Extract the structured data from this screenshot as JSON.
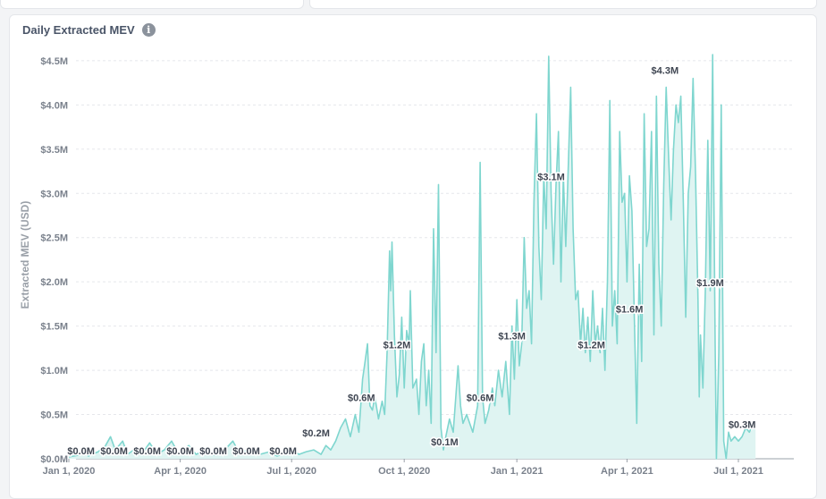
{
  "chart_data": {
    "type": "area",
    "title": "Daily Extracted MEV",
    "ylabel": "Extracted MEV (USD)",
    "xlabel": "",
    "ylim": [
      0,
      4.6
    ],
    "y_ticks": [
      {
        "value": 0.0,
        "label": "$0.0M"
      },
      {
        "value": 0.5,
        "label": "$0.5M"
      },
      {
        "value": 1.0,
        "label": "$1.0M"
      },
      {
        "value": 1.5,
        "label": "$1.5M"
      },
      {
        "value": 2.0,
        "label": "$2.0M"
      },
      {
        "value": 2.5,
        "label": "$2.5M"
      },
      {
        "value": 3.0,
        "label": "$3.0M"
      },
      {
        "value": 3.5,
        "label": "$3.5M"
      },
      {
        "value": 4.0,
        "label": "$4.0M"
      },
      {
        "value": 4.5,
        "label": "$4.5M"
      }
    ],
    "x_range_days": [
      0,
      561
    ],
    "x_ticks": [
      {
        "day": 0,
        "label": "Jan 1, 2020"
      },
      {
        "day": 91,
        "label": "Apr 1, 2020"
      },
      {
        "day": 182,
        "label": "Jul 1, 2020"
      },
      {
        "day": 274,
        "label": "Oct 1, 2020"
      },
      {
        "day": 366,
        "label": "Jan 1, 2021"
      },
      {
        "day": 456,
        "label": "Apr 1, 2021"
      },
      {
        "day": 547,
        "label": "Jul 1, 2021"
      }
    ],
    "series": [
      {
        "name": "Daily Extracted MEV",
        "color": "#7fd6cf",
        "fill": "#dff4f2",
        "points": [
          [
            0,
            0.02
          ],
          [
            8,
            0.04
          ],
          [
            12,
            0.1
          ],
          [
            16,
            0.03
          ],
          [
            24,
            0.08
          ],
          [
            30,
            0.15
          ],
          [
            34,
            0.25
          ],
          [
            38,
            0.1
          ],
          [
            44,
            0.2
          ],
          [
            48,
            0.05
          ],
          [
            55,
            0.12
          ],
          [
            60,
            0.06
          ],
          [
            66,
            0.18
          ],
          [
            72,
            0.05
          ],
          [
            78,
            0.1
          ],
          [
            84,
            0.2
          ],
          [
            90,
            0.05
          ],
          [
            98,
            0.15
          ],
          [
            104,
            0.05
          ],
          [
            112,
            0.1
          ],
          [
            118,
            0.04
          ],
          [
            126,
            0.08
          ],
          [
            134,
            0.2
          ],
          [
            140,
            0.05
          ],
          [
            148,
            0.12
          ],
          [
            156,
            0.05
          ],
          [
            164,
            0.08
          ],
          [
            170,
            0.03
          ],
          [
            176,
            0.06
          ],
          [
            182,
            0.1
          ],
          [
            188,
            0.05
          ],
          [
            194,
            0.08
          ],
          [
            200,
            0.1
          ],
          [
            206,
            0.05
          ],
          [
            210,
            0.15
          ],
          [
            214,
            0.1
          ],
          [
            218,
            0.2
          ],
          [
            222,
            0.35
          ],
          [
            226,
            0.45
          ],
          [
            230,
            0.25
          ],
          [
            234,
            0.5
          ],
          [
            237,
            0.3
          ],
          [
            240,
            0.9
          ],
          [
            242,
            1.1
          ],
          [
            244,
            1.3
          ],
          [
            246,
            0.6
          ],
          [
            248,
            0.55
          ],
          [
            250,
            0.7
          ],
          [
            253,
            0.45
          ],
          [
            256,
            0.65
          ],
          [
            258,
            0.5
          ],
          [
            260,
            1.2
          ],
          [
            262,
            2.35
          ],
          [
            263,
            1.9
          ],
          [
            264,
            2.45
          ],
          [
            266,
            1.4
          ],
          [
            268,
            0.7
          ],
          [
            270,
            0.95
          ],
          [
            272,
            1.6
          ],
          [
            274,
            0.8
          ],
          [
            276,
            1.45
          ],
          [
            278,
            1.3
          ],
          [
            279,
            1.9
          ],
          [
            281,
            0.8
          ],
          [
            284,
            0.9
          ],
          [
            286,
            0.5
          ],
          [
            288,
            1.1
          ],
          [
            290,
            1.3
          ],
          [
            292,
            0.6
          ],
          [
            294,
            1.0
          ],
          [
            296,
            0.4
          ],
          [
            298,
            2.6
          ],
          [
            300,
            1.2
          ],
          [
            302,
            3.1
          ],
          [
            304,
            0.35
          ],
          [
            306,
            0.1
          ],
          [
            308,
            0.25
          ],
          [
            311,
            0.45
          ],
          [
            314,
            0.3
          ],
          [
            318,
            1.05
          ],
          [
            320,
            0.6
          ],
          [
            322,
            0.4
          ],
          [
            325,
            0.5
          ],
          [
            330,
            0.3
          ],
          [
            334,
            0.6
          ],
          [
            336,
            3.35
          ],
          [
            338,
            0.7
          ],
          [
            340,
            0.4
          ],
          [
            343,
            0.55
          ],
          [
            346,
            0.8
          ],
          [
            348,
            0.6
          ],
          [
            351,
            1.0
          ],
          [
            354,
            0.7
          ],
          [
            357,
            1.1
          ],
          [
            360,
            0.5
          ],
          [
            362,
            1.5
          ],
          [
            364,
            0.9
          ],
          [
            366,
            1.8
          ],
          [
            368,
            1.05
          ],
          [
            370,
            1.3
          ],
          [
            372,
            2.5
          ],
          [
            374,
            1.7
          ],
          [
            376,
            1.9
          ],
          [
            378,
            1.3
          ],
          [
            380,
            2.9
          ],
          [
            382,
            3.9
          ],
          [
            384,
            2.4
          ],
          [
            386,
            1.8
          ],
          [
            388,
            3.2
          ],
          [
            390,
            2.6
          ],
          [
            392,
            4.55
          ],
          [
            394,
            3.0
          ],
          [
            396,
            2.2
          ],
          [
            398,
            3.1
          ],
          [
            400,
            3.7
          ],
          [
            402,
            2.0
          ],
          [
            404,
            3.2
          ],
          [
            406,
            2.4
          ],
          [
            408,
            3.3
          ],
          [
            410,
            4.2
          ],
          [
            412,
            2.6
          ],
          [
            414,
            1.8
          ],
          [
            416,
            1.9
          ],
          [
            418,
            1.3
          ],
          [
            420,
            1.7
          ],
          [
            422,
            1.2
          ],
          [
            424,
            1.6
          ],
          [
            426,
            1.1
          ],
          [
            428,
            1.9
          ],
          [
            430,
            1.3
          ],
          [
            432,
            1.5
          ],
          [
            434,
            1.2
          ],
          [
            436,
            1.7
          ],
          [
            438,
            1.0
          ],
          [
            440,
            2.0
          ],
          [
            442,
            4.05
          ],
          [
            444,
            1.5
          ],
          [
            446,
            1.9
          ],
          [
            448,
            1.3
          ],
          [
            450,
            3.7
          ],
          [
            452,
            2.9
          ],
          [
            454,
            3.0
          ],
          [
            456,
            2.0
          ],
          [
            458,
            3.2
          ],
          [
            460,
            2.8
          ],
          [
            462,
            1.6
          ],
          [
            464,
            0.4
          ],
          [
            466,
            2.2
          ],
          [
            468,
            1.1
          ],
          [
            470,
            3.9
          ],
          [
            472,
            2.4
          ],
          [
            474,
            2.6
          ],
          [
            476,
            3.7
          ],
          [
            478,
            1.4
          ],
          [
            480,
            4.1
          ],
          [
            482,
            2.2
          ],
          [
            484,
            1.5
          ],
          [
            486,
            3.1
          ],
          [
            488,
            4.2
          ],
          [
            490,
            3.4
          ],
          [
            492,
            2.7
          ],
          [
            494,
            3.5
          ],
          [
            496,
            4.0
          ],
          [
            498,
            3.8
          ],
          [
            500,
            4.1
          ],
          [
            502,
            2.9
          ],
          [
            504,
            1.6
          ],
          [
            506,
            3.0
          ],
          [
            508,
            3.3
          ],
          [
            510,
            4.3
          ],
          [
            512,
            3.2
          ],
          [
            514,
            1.8
          ],
          [
            515,
            0.7
          ],
          [
            516,
            1.4
          ],
          [
            518,
            0.8
          ],
          [
            520,
            1.9
          ],
          [
            522,
            3.6
          ],
          [
            524,
            1.9
          ],
          [
            526,
            4.57
          ],
          [
            528,
            1.3
          ],
          [
            529,
            0.0
          ],
          [
            531,
            1.2
          ],
          [
            533,
            4.0
          ],
          [
            535,
            0.2
          ],
          [
            537,
            0.0
          ],
          [
            539,
            0.3
          ],
          [
            541,
            0.2
          ],
          [
            544,
            0.25
          ],
          [
            547,
            0.2
          ],
          [
            550,
            0.25
          ],
          [
            553,
            0.35
          ],
          [
            556,
            0.3
          ],
          [
            559,
            0.4
          ],
          [
            561,
            0.35
          ]
        ]
      }
    ],
    "annotations": [
      {
        "day": 10,
        "value": 0.0,
        "label": "$0.0M"
      },
      {
        "day": 37,
        "value": 0.0,
        "label": "$0.0M"
      },
      {
        "day": 64,
        "value": 0.0,
        "label": "$0.0M"
      },
      {
        "day": 91,
        "value": 0.0,
        "label": "$0.0M"
      },
      {
        "day": 118,
        "value": 0.0,
        "label": "$0.0M"
      },
      {
        "day": 145,
        "value": 0.0,
        "label": "$0.0M"
      },
      {
        "day": 175,
        "value": 0.0,
        "label": "$0.0M"
      },
      {
        "day": 202,
        "value": 0.2,
        "label": "$0.2M"
      },
      {
        "day": 239,
        "value": 0.6,
        "label": "$0.6M"
      },
      {
        "day": 268,
        "value": 1.2,
        "label": "$1.2M"
      },
      {
        "day": 307,
        "value": 0.1,
        "label": "$0.1M"
      },
      {
        "day": 336,
        "value": 0.6,
        "label": "$0.6M"
      },
      {
        "day": 362,
        "value": 1.3,
        "label": "$1.3M"
      },
      {
        "day": 394,
        "value": 3.1,
        "label": "$3.1M"
      },
      {
        "day": 427,
        "value": 1.2,
        "label": "$1.2M"
      },
      {
        "day": 458,
        "value": 1.6,
        "label": "$1.6M"
      },
      {
        "day": 487,
        "value": 4.3,
        "label": "$4.3M"
      },
      {
        "day": 524,
        "value": 1.9,
        "label": "$1.9M"
      },
      {
        "day": 550,
        "value": 0.3,
        "label": "$0.3M"
      }
    ]
  }
}
